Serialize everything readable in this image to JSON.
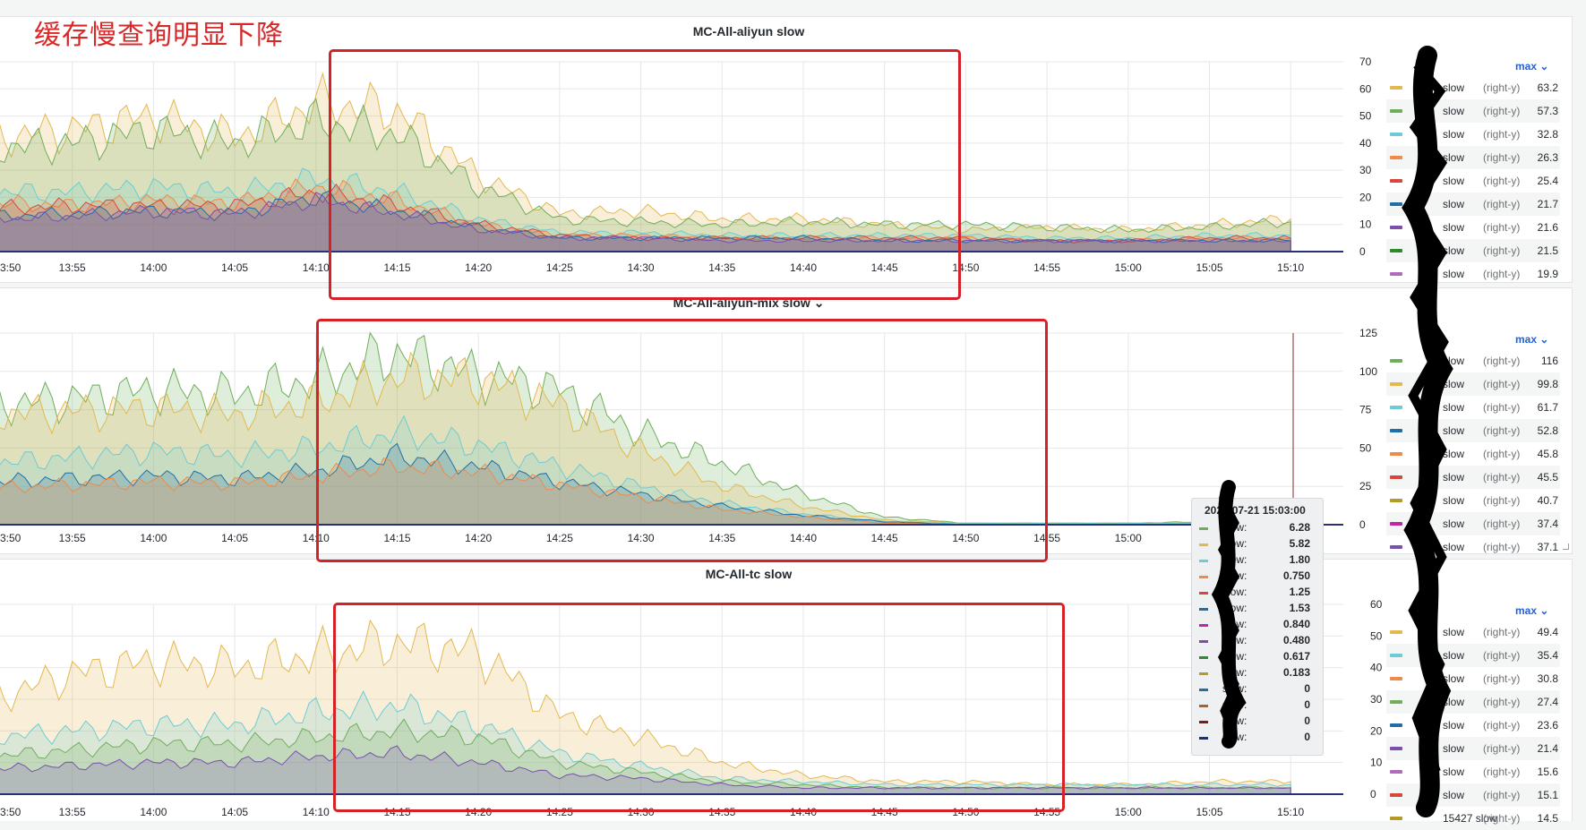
{
  "annotation": "缓存慢查询明显下降",
  "time_labels": [
    "3:50",
    "13:55",
    "14:00",
    "14:05",
    "14:10",
    "14:15",
    "14:20",
    "14:25",
    "14:30",
    "14:35",
    "14:40",
    "14:45",
    "14:50",
    "14:55",
    "15:00",
    "15:05",
    "15:10"
  ],
  "panels": [
    {
      "title": "MC-All-aliyun slow",
      "has_dropdown": false,
      "max_label": "max",
      "y_ticks": [
        "70",
        "60",
        "50",
        "40",
        "30",
        "20",
        "10",
        "0"
      ],
      "x_labels": [
        "3:50",
        "13:55",
        "14:00",
        "14:05",
        "14:10",
        "14:15",
        "14:20",
        "14:25",
        "14:30",
        "14:35",
        "14:40",
        "14:45",
        "14:50",
        "14:55",
        "15:00",
        "15:05",
        "15:10"
      ],
      "legend": [
        {
          "name": "slow",
          "axis": "(right-y)",
          "value": "63.2",
          "color": "#e3b84f"
        },
        {
          "name": "slow",
          "axis": "(right-y)",
          "value": "57.3",
          "color": "#6fae5b"
        },
        {
          "name": "slow",
          "axis": "(right-y)",
          "value": "32.8",
          "color": "#6fcbd3"
        },
        {
          "name": "slow",
          "axis": "(right-y)",
          "value": "26.3",
          "color": "#ef8a4a"
        },
        {
          "name": "slow",
          "axis": "(right-y)",
          "value": "25.4",
          "color": "#d9463c"
        },
        {
          "name": "slow",
          "axis": "(right-y)",
          "value": "21.7",
          "color": "#1f6ea8"
        },
        {
          "name": "slow",
          "axis": "(right-y)",
          "value": "21.6",
          "color": "#7a4fb0"
        },
        {
          "name": "slow",
          "axis": "(right-y)",
          "value": "21.5",
          "color": "#2f8a2f"
        },
        {
          "name": "slow",
          "axis": "(right-y)",
          "value": "19.9",
          "color": "#b06cb8"
        }
      ]
    },
    {
      "title": "MC-All-aliyun-mix slow",
      "has_dropdown": true,
      "max_label": "max",
      "y_ticks": [
        "125",
        "100",
        "75",
        "50",
        "25",
        "0"
      ],
      "x_labels": [
        "3:50",
        "13:55",
        "14:00",
        "14:05",
        "14:10",
        "14:15",
        "14:20",
        "14:25",
        "14:30",
        "14:35",
        "14:40",
        "14:45",
        "14:50",
        "14:55",
        "15:00"
      ],
      "legend": [
        {
          "name": "slow",
          "axis": "(right-y)",
          "value": "116",
          "color": "#6fae5b"
        },
        {
          "name": "slow",
          "axis": "(right-y)",
          "value": "99.8",
          "color": "#e3b84f"
        },
        {
          "name": "slow",
          "axis": "(right-y)",
          "value": "61.7",
          "color": "#6fcbd3"
        },
        {
          "name": "slow",
          "axis": "(right-y)",
          "value": "52.8",
          "color": "#1f6ea8"
        },
        {
          "name": "slow",
          "axis": "(right-y)",
          "value": "45.8",
          "color": "#ef8a4a"
        },
        {
          "name": "slow",
          "axis": "(right-y)",
          "value": "45.5",
          "color": "#d9463c"
        },
        {
          "name": "slow",
          "axis": "(right-y)",
          "value": "40.7",
          "color": "#b59a28"
        },
        {
          "name": "slow",
          "axis": "(right-y)",
          "value": "37.4",
          "color": "#c026a8"
        },
        {
          "name": "slow",
          "axis": "(right-y)",
          "value": "37.1",
          "color": "#7a4fb0"
        }
      ]
    },
    {
      "title": "MC-All-tc slow",
      "has_dropdown": false,
      "max_label": "max",
      "y_ticks": [
        "60",
        "50",
        "40",
        "30",
        "20",
        "10",
        "0"
      ],
      "x_labels": [
        "3:50",
        "13:55",
        "14:00",
        "14:05",
        "14:10",
        "14:15",
        "14:20",
        "14:25",
        "14:30",
        "14:35",
        "14:40",
        "14:45",
        "14:50",
        "14:55",
        "15:00",
        "15:05",
        "15:10"
      ],
      "legend": [
        {
          "name": "slow",
          "axis": "(right-y)",
          "value": "49.4",
          "color": "#e3b84f"
        },
        {
          "name": "slow",
          "axis": "(right-y)",
          "value": "35.4",
          "color": "#6fcbd3"
        },
        {
          "name": "slow",
          "axis": "(right-y)",
          "value": "30.8",
          "color": "#ef8a4a"
        },
        {
          "name": "slow",
          "axis": "(right-y)",
          "value": "27.4",
          "color": "#6fae5b"
        },
        {
          "name": "slow",
          "axis": "(right-y)",
          "value": "23.6",
          "color": "#1f6ea8"
        },
        {
          "name": "slow",
          "axis": "(right-y)",
          "value": "21.4",
          "color": "#7a4fb0"
        },
        {
          "name": "slow",
          "axis": "(right-y)",
          "value": "15.6",
          "color": "#b06cb8"
        },
        {
          "name": "slow",
          "axis": "(right-y)",
          "value": "15.1",
          "color": "#d9463c"
        },
        {
          "name": "15427 slow",
          "axis": "(right-y)",
          "value": "14.5",
          "color": "#b59a28"
        }
      ]
    }
  ],
  "tooltip": {
    "title": "2023-07-21 15:03:00",
    "rows": [
      {
        "label": "slow:",
        "value": "6.28",
        "color": "#6fae5b"
      },
      {
        "label": "slow:",
        "value": "5.82",
        "color": "#e3b84f"
      },
      {
        "label": "slow:",
        "value": "1.80",
        "color": "#6fcbd3"
      },
      {
        "label": "slow:",
        "value": "0.750",
        "color": "#ef8a4a"
      },
      {
        "label": "slow:",
        "value": "1.25",
        "color": "#d9463c"
      },
      {
        "label": "slow:",
        "value": "1.53",
        "color": "#1f6ea8"
      },
      {
        "label": "slow:",
        "value": "0.840",
        "color": "#c026a8"
      },
      {
        "label": "slow:",
        "value": "0.480",
        "color": "#7a4fb0"
      },
      {
        "label": "slow:",
        "value": "0.617",
        "color": "#2f8a2f"
      },
      {
        "label": "slow:",
        "value": "0.183",
        "color": "#b59a28"
      },
      {
        "label": "slow:",
        "value": "0",
        "color": "#1f6ea8"
      },
      {
        "label": "slow:",
        "value": "0",
        "color": "#b06030"
      },
      {
        "label": "slow:",
        "value": "0",
        "color": "#7a1c1c"
      },
      {
        "label": "slow:",
        "value": "0",
        "color": "#1a2f80"
      }
    ]
  },
  "chart_data": [
    {
      "type": "area",
      "title": "MC-All-aliyun slow",
      "x": [
        "13:50",
        "13:55",
        "14:00",
        "14:05",
        "14:10",
        "14:15",
        "14:20",
        "14:25",
        "14:30",
        "14:35",
        "14:40",
        "14:45",
        "14:50",
        "14:55",
        "15:00",
        "15:05",
        "15:10"
      ],
      "ylim": [
        0,
        70
      ],
      "series": [
        {
          "values": [
            42,
            45,
            50,
            42,
            55,
            52,
            28,
            14,
            15,
            12,
            12,
            10,
            8,
            9,
            8,
            10,
            12
          ]
        },
        {
          "values": [
            38,
            40,
            45,
            40,
            48,
            43,
            24,
            12,
            11,
            10,
            11,
            10,
            10,
            9,
            8,
            9,
            11
          ]
        },
        {
          "values": [
            22,
            22,
            24,
            22,
            27,
            22,
            12,
            7,
            7,
            6,
            6,
            6,
            6,
            5,
            5,
            6,
            6
          ]
        },
        {
          "values": [
            18,
            17,
            19,
            18,
            24,
            19,
            10,
            6,
            6,
            5,
            5,
            5,
            5,
            4,
            4,
            5,
            5
          ]
        },
        {
          "values": [
            16,
            17,
            17,
            17,
            22,
            17,
            10,
            6,
            5,
            5,
            5,
            5,
            5,
            4,
            4,
            5,
            5
          ]
        },
        {
          "values": [
            13,
            14,
            15,
            14,
            20,
            15,
            9,
            5,
            5,
            5,
            5,
            4,
            4,
            4,
            4,
            4,
            4
          ]
        },
        {
          "values": [
            12,
            13,
            15,
            14,
            19,
            14,
            8,
            5,
            5,
            4,
            4,
            4,
            4,
            4,
            4,
            4,
            4
          ]
        }
      ]
    },
    {
      "type": "area",
      "title": "MC-All-aliyun-mix slow",
      "x": [
        "13:50",
        "13:55",
        "14:00",
        "14:05",
        "14:10",
        "14:15",
        "14:20",
        "14:25",
        "14:30",
        "14:35",
        "14:40",
        "14:45",
        "14:50",
        "14:55",
        "15:00",
        "15:05",
        "15:10"
      ],
      "ylim": [
        0,
        125
      ],
      "series": [
        {
          "values": [
            78,
            82,
            88,
            85,
            95,
            112,
            98,
            88,
            60,
            40,
            20,
            5,
            1,
            1,
            1,
            2,
            3
          ]
        },
        {
          "values": [
            72,
            74,
            76,
            72,
            80,
            96,
            95,
            78,
            48,
            25,
            12,
            3,
            1,
            1,
            1,
            1,
            2
          ]
        },
        {
          "values": [
            40,
            44,
            48,
            45,
            50,
            60,
            52,
            38,
            25,
            14,
            7,
            2,
            1,
            1,
            1,
            1,
            1
          ]
        },
        {
          "values": [
            28,
            30,
            32,
            30,
            35,
            45,
            38,
            28,
            20,
            12,
            6,
            2,
            0,
            0,
            0,
            0,
            1
          ]
        },
        {
          "values": [
            24,
            26,
            28,
            27,
            32,
            38,
            34,
            26,
            18,
            10,
            5,
            1,
            0,
            0,
            0,
            0,
            0
          ]
        }
      ]
    },
    {
      "type": "area",
      "title": "MC-All-tc slow",
      "x": [
        "13:50",
        "13:55",
        "14:00",
        "14:05",
        "14:10",
        "14:15",
        "14:20",
        "14:25",
        "14:30",
        "14:35",
        "14:40",
        "14:45",
        "14:50",
        "14:55",
        "15:00",
        "15:05",
        "15:10"
      ],
      "ylim": [
        0,
        60
      ],
      "series": [
        {
          "values": [
            30,
            38,
            42,
            40,
            44,
            48,
            45,
            25,
            18,
            10,
            6,
            4,
            4,
            3,
            3,
            4,
            4
          ]
        },
        {
          "values": [
            18,
            20,
            22,
            22,
            26,
            28,
            22,
            13,
            9,
            5,
            4,
            3,
            3,
            3,
            3,
            3,
            3
          ]
        },
        {
          "values": [
            12,
            14,
            16,
            16,
            18,
            20,
            18,
            10,
            7,
            4,
            3,
            2,
            2,
            2,
            2,
            2,
            2
          ]
        },
        {
          "values": [
            8,
            9,
            10,
            10,
            12,
            13,
            10,
            6,
            5,
            3,
            2,
            2,
            2,
            2,
            2,
            2,
            2
          ]
        }
      ]
    }
  ]
}
